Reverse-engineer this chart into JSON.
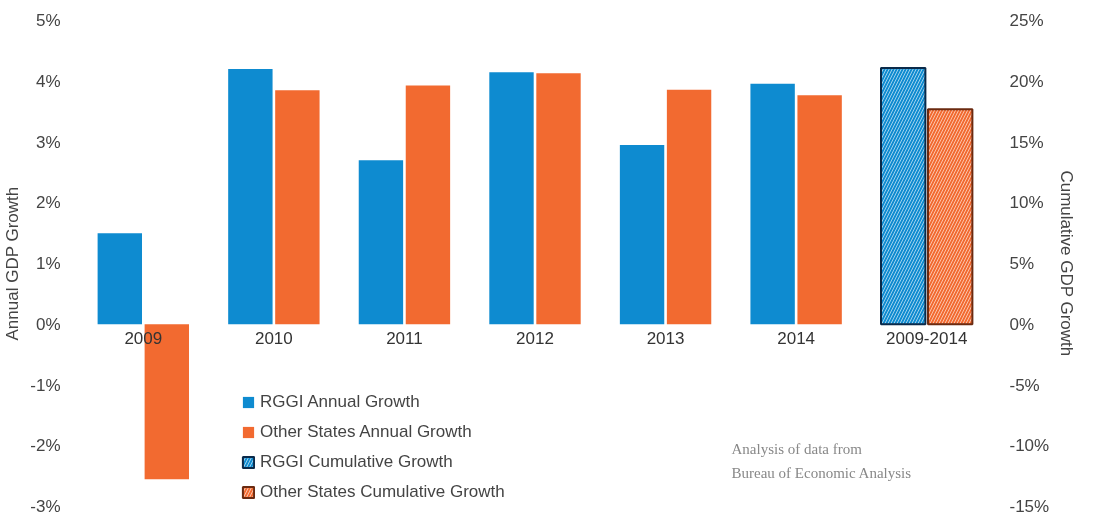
{
  "chart_data": {
    "type": "bar",
    "ylabel": "Annual GDP Growth",
    "y2label": "Cumulative GDP Growth",
    "categories": [
      "2009",
      "2010",
      "2011",
      "2012",
      "2013",
      "2014",
      "2009-2014"
    ],
    "series": [
      {
        "name": "RGGI Annual Growth",
        "color": "#0e8bd0",
        "values": [
          1.5,
          4.2,
          2.7,
          4.15,
          2.95,
          3.96,
          null
        ]
      },
      {
        "name": "Other States Annual Growth",
        "color": "#f26a30",
        "values": [
          -2.55,
          3.85,
          3.93,
          4.13,
          3.86,
          3.77,
          null
        ]
      },
      {
        "name": "RGGI Cumulative Growth",
        "color": "#0e8bd0",
        "axis": "y2",
        "values": [
          null,
          null,
          null,
          null,
          null,
          null,
          21.1
        ]
      },
      {
        "name": "Other States Cumulative Growth",
        "color": "#f26a30",
        "axis": "y2",
        "values": [
          null,
          null,
          null,
          null,
          null,
          null,
          17.7
        ]
      }
    ],
    "ylim": [
      -3,
      5
    ],
    "yticks": [
      {
        "value": -3,
        "label": "-3%"
      },
      {
        "value": -2,
        "label": "-2%"
      },
      {
        "value": -1,
        "label": "-1%"
      },
      {
        "value": 0,
        "label": "0%"
      },
      {
        "value": 1,
        "label": "1%"
      },
      {
        "value": 2,
        "label": "2%"
      },
      {
        "value": 3,
        "label": "3%"
      },
      {
        "value": 4,
        "label": "4%"
      },
      {
        "value": 5,
        "label": "5%"
      }
    ],
    "y2lim": [
      -15,
      25
    ],
    "y2ticks": [
      {
        "value": -15,
        "label": "-15%"
      },
      {
        "value": -10,
        "label": "-10%"
      },
      {
        "value": -5,
        "label": "-5%"
      },
      {
        "value": 0,
        "label": "0%"
      },
      {
        "value": 5,
        "label": "5%"
      },
      {
        "value": 10,
        "label": "10%"
      },
      {
        "value": 15,
        "label": "15%"
      },
      {
        "value": 20,
        "label": "20%"
      },
      {
        "value": 25,
        "label": "25%"
      }
    ],
    "annotations": [
      "Analysis of data from",
      "Bureau of Economic Analysis"
    ],
    "legend": "bottom",
    "grid": false
  }
}
